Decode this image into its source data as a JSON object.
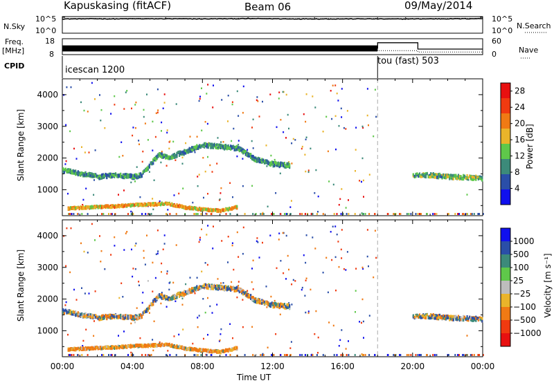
{
  "chart_data": [
    {
      "type": "line",
      "panel": "noise",
      "left_label": "N.Sky",
      "right_label": "N.Search",
      "left_ticks": [
        "10^5",
        "10^0"
      ],
      "right_ticks": [
        "10^5",
        "10^0"
      ],
      "left_scale": "log",
      "ylim": [
        1,
        100000
      ],
      "series": [
        {
          "name": "N.Sky",
          "style": "solid",
          "x": [
            0,
            1,
            2,
            3,
            4,
            5,
            6,
            7,
            8,
            9,
            10,
            11,
            12,
            13,
            14,
            15,
            16,
            17,
            18,
            19,
            20,
            21,
            22,
            23,
            24
          ],
          "values": [
            20000,
            21000,
            22000,
            20000,
            22000,
            21000,
            22000,
            21000,
            20000,
            22000,
            23000,
            24000,
            22000,
            20000,
            21000,
            20000,
            20000,
            21000,
            20000,
            19000,
            20000,
            21000,
            22000,
            23000,
            24000
          ]
        },
        {
          "name": "N.Search",
          "style": "dotted",
          "x": [
            0,
            1,
            2,
            3,
            4,
            5,
            6,
            7,
            8,
            9,
            10,
            11,
            12,
            13,
            14,
            15,
            16,
            17,
            18,
            19,
            20,
            21,
            22,
            23,
            24
          ],
          "values": [
            25000,
            26000,
            27000,
            25000,
            27000,
            26000,
            28000,
            26000,
            25000,
            27000,
            28000,
            28000,
            26000,
            24000,
            25000,
            24000,
            24000,
            25000,
            24000,
            23000,
            24000,
            25000,
            26000,
            27000,
            28000
          ]
        }
      ]
    },
    {
      "type": "line",
      "panel": "frequency",
      "left_label": "Freq.",
      "left_unit": "[MHz]",
      "right_label": "Nave",
      "left_ticks": [
        "18",
        "8"
      ],
      "right_ticks": [
        "60",
        "0"
      ],
      "ylim_left": [
        8,
        18
      ],
      "ylim_right": [
        0,
        60
      ],
      "series": [
        {
          "name": "Freq.",
          "style": "solid",
          "x": [
            0,
            18,
            18,
            20.3,
            20.3,
            24
          ],
          "values": [
            12.0,
            12.0,
            15.5,
            15.5,
            11.5,
            11.5
          ]
        },
        {
          "name": "Nave",
          "style": "dotted",
          "x": [
            0,
            18,
            18,
            20.3,
            20.3,
            24
          ],
          "values": [
            20,
            20,
            15,
            15,
            10,
            10
          ]
        }
      ]
    },
    {
      "type": "table",
      "panel": "cpid",
      "label": "CPID",
      "segments": [
        {
          "start": 0,
          "end": 18,
          "text": "icescan 1200"
        },
        {
          "start": 18,
          "end": 24,
          "text": "tou (fast) 503"
        }
      ]
    },
    {
      "type": "heatmap",
      "panel": "power",
      "ylabel": "Slant Range [km]",
      "xlim": [
        0,
        24
      ],
      "ylim": [
        180,
        4500
      ],
      "yticks": [
        1000,
        2000,
        3000,
        4000
      ],
      "colorbar_label": "Power [dB]",
      "colorbar_ticks": [
        4,
        8,
        12,
        16,
        20,
        24,
        28
      ],
      "colorbar_range": [
        0,
        30
      ],
      "colors": [
        "#1010ee",
        "#2a4ea8",
        "#3c8a7a",
        "#5fc84a",
        "#eab42a",
        "#f07a14",
        "#f03a10",
        "#e81010"
      ],
      "features": [
        {
          "x": [
            0,
            1,
            2,
            3,
            4,
            4.5,
            5,
            5.5,
            6,
            7,
            8,
            9,
            10,
            11,
            12,
            13
          ],
          "y": [
            1650,
            1550,
            1450,
            1500,
            1450,
            1500,
            1850,
            2150,
            2050,
            2250,
            2450,
            2400,
            2350,
            2000,
            1850,
            1800
          ],
          "value": 10
        },
        {
          "x": [
            0.3,
            1,
            2,
            3,
            4,
            5,
            6,
            7,
            8,
            9,
            10
          ],
          "y": [
            450,
            470,
            500,
            520,
            560,
            580,
            600,
            480,
            420,
            380,
            500
          ],
          "value": 18
        },
        {
          "x": [
            20,
            21,
            22,
            23,
            24
          ],
          "y": [
            1500,
            1500,
            1450,
            1430,
            1400
          ],
          "value": 12
        }
      ]
    },
    {
      "type": "heatmap",
      "panel": "velocity",
      "ylabel": "Slant Range [km]",
      "xlabel": "Time UT",
      "xticks": [
        "00:00",
        "04:00",
        "08:00",
        "12:00",
        "16:00",
        "20:00",
        "00:00"
      ],
      "xlim": [
        0,
        24
      ],
      "ylim": [
        180,
        4500
      ],
      "yticks": [
        1000,
        2000,
        3000,
        4000
      ],
      "colorbar_label": "Velocity [m s⁻¹]",
      "colorbar_ticks": [
        "1000",
        "500",
        "100",
        "25",
        "−25",
        "−100",
        "−500",
        "−1000"
      ],
      "colors": [
        "#1010ee",
        "#2a4ea8",
        "#3c8a7a",
        "#5fc84a",
        "#bdbdbd",
        "#eab42a",
        "#f07a14",
        "#f03a10",
        "#e81010"
      ],
      "features": [
        {
          "x": [
            0,
            1,
            2,
            3,
            4,
            4.5,
            5,
            5.5,
            6,
            7,
            8,
            9,
            10,
            11,
            12,
            13
          ],
          "y": [
            1650,
            1550,
            1450,
            1500,
            1450,
            1500,
            1850,
            2150,
            2050,
            2250,
            2450,
            2400,
            2350,
            2000,
            1850,
            1800
          ],
          "value": 0
        },
        {
          "x": [
            0.3,
            1,
            2,
            3,
            4,
            5,
            6,
            7,
            8,
            9,
            10
          ],
          "y": [
            450,
            470,
            500,
            520,
            560,
            580,
            600,
            480,
            420,
            380,
            500
          ],
          "value": -150
        },
        {
          "x": [
            20,
            21,
            22,
            23,
            24
          ],
          "y": [
            1500,
            1500,
            1450,
            1430,
            1400
          ],
          "value": 0
        }
      ]
    }
  ],
  "header": {
    "station": "Kapuskasing (fitACF)",
    "beam": "Beam 06",
    "date": "09/May/2014"
  },
  "colors": {
    "velocity_top": "#1010ee",
    "velocity_bottom": "#e81010",
    "power_bottom": "#1010ee",
    "power_top": "#e81010",
    "grey_scatter": "#bdbdbd"
  }
}
